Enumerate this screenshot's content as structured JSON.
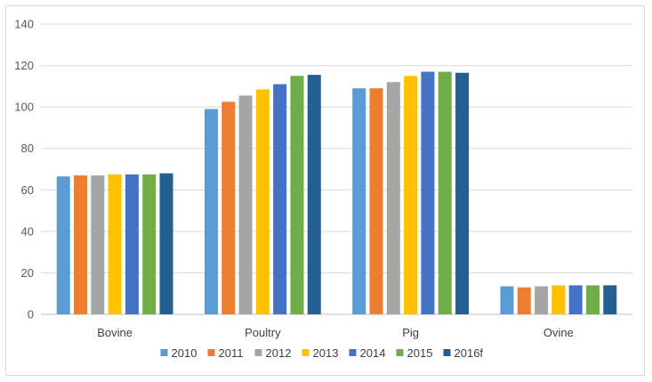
{
  "chart_data": {
    "type": "bar",
    "title": "",
    "xlabel": "",
    "ylabel": "",
    "ylim": [
      0,
      140
    ],
    "yticks": [
      0,
      20,
      40,
      60,
      80,
      100,
      120,
      140
    ],
    "grid": true,
    "legend_position": "bottom",
    "categories": [
      "Bovine",
      "Poultry",
      "Pig",
      "Ovine"
    ],
    "series": [
      {
        "name": "2010",
        "color": "#5b9bd5",
        "values": [
          66.5,
          99,
          109,
          13.5
        ]
      },
      {
        "name": "2011",
        "color": "#ed7d31",
        "values": [
          67,
          102.5,
          109,
          13
        ]
      },
      {
        "name": "2012",
        "color": "#a5a5a5",
        "values": [
          67,
          105.5,
          112,
          13.5
        ]
      },
      {
        "name": "2013",
        "color": "#ffc000",
        "values": [
          67.5,
          108.5,
          115,
          14
        ]
      },
      {
        "name": "2014",
        "color": "#4472c4",
        "values": [
          67.5,
          111,
          117,
          14
        ]
      },
      {
        "name": "2015",
        "color": "#70ad47",
        "values": [
          67.5,
          115,
          117,
          14
        ]
      },
      {
        "name": "2016f",
        "color": "#255e91",
        "values": [
          68,
          115.5,
          116.5,
          14
        ]
      }
    ]
  }
}
